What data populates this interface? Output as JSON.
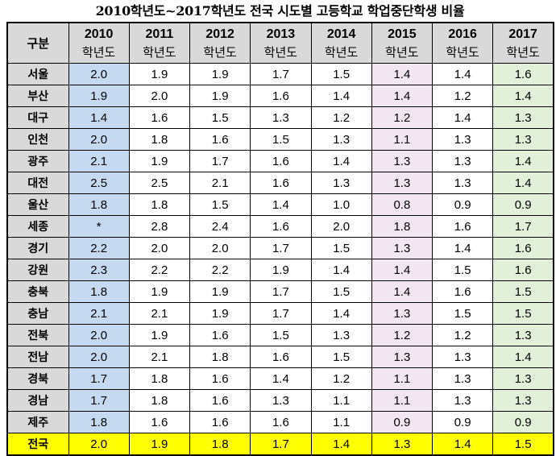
{
  "title": "2010학년도~2017학년도 전국 시도별 고등학교 학업중단학생 비율",
  "header": {
    "region_label": "구분",
    "unit": "학년도",
    "years": [
      "2010",
      "2011",
      "2012",
      "2013",
      "2014",
      "2015",
      "2016",
      "2017"
    ]
  },
  "rows": [
    {
      "region": "서울",
      "values": [
        "2.0",
        "1.9",
        "1.9",
        "1.7",
        "1.5",
        "1.4",
        "1.4",
        "1.6"
      ]
    },
    {
      "region": "부산",
      "values": [
        "1.9",
        "2.0",
        "1.9",
        "1.6",
        "1.4",
        "1.4",
        "1.2",
        "1.4"
      ]
    },
    {
      "region": "대구",
      "values": [
        "1.4",
        "1.6",
        "1.5",
        "1.3",
        "1.2",
        "1.2",
        "1.4",
        "1.3"
      ]
    },
    {
      "region": "인천",
      "values": [
        "2.0",
        "1.8",
        "1.6",
        "1.5",
        "1.3",
        "1.1",
        "1.3",
        "1.3"
      ]
    },
    {
      "region": "광주",
      "values": [
        "2.1",
        "1.9",
        "1.7",
        "1.6",
        "1.4",
        "1.3",
        "1.3",
        "1.4"
      ]
    },
    {
      "region": "대전",
      "values": [
        "2.5",
        "2.5",
        "2.1",
        "1.6",
        "1.3",
        "1.3",
        "1.3",
        "1.4"
      ]
    },
    {
      "region": "울산",
      "values": [
        "1.8",
        "1.8",
        "1.5",
        "1.4",
        "1.0",
        "0.8",
        "0.9",
        "0.9"
      ]
    },
    {
      "region": "세종",
      "values": [
        "*",
        "2.8",
        "2.4",
        "1.6",
        "2.0",
        "1.8",
        "1.6",
        "1.7"
      ]
    },
    {
      "region": "경기",
      "values": [
        "2.2",
        "2.0",
        "2.0",
        "1.7",
        "1.5",
        "1.3",
        "1.4",
        "1.6"
      ]
    },
    {
      "region": "강원",
      "values": [
        "2.3",
        "2.2",
        "2.2",
        "1.9",
        "1.4",
        "1.4",
        "1.5",
        "1.6"
      ]
    },
    {
      "region": "충북",
      "values": [
        "1.8",
        "1.9",
        "1.9",
        "1.7",
        "1.5",
        "1.4",
        "1.6",
        "1.5"
      ]
    },
    {
      "region": "충남",
      "values": [
        "2.1",
        "2.1",
        "1.9",
        "1.7",
        "1.4",
        "1.3",
        "1.5",
        "1.5"
      ]
    },
    {
      "region": "전북",
      "values": [
        "2.0",
        "1.9",
        "1.6",
        "1.5",
        "1.3",
        "1.2",
        "1.2",
        "1.3"
      ]
    },
    {
      "region": "전남",
      "values": [
        "2.0",
        "2.1",
        "1.8",
        "1.6",
        "1.5",
        "1.3",
        "1.3",
        "1.4"
      ]
    },
    {
      "region": "경북",
      "values": [
        "1.7",
        "1.8",
        "1.6",
        "1.4",
        "1.2",
        "1.1",
        "1.3",
        "1.3"
      ]
    },
    {
      "region": "경남",
      "values": [
        "1.7",
        "1.8",
        "1.6",
        "1.3",
        "1.1",
        "1.1",
        "1.3",
        "1.3"
      ]
    },
    {
      "region": "제주",
      "values": [
        "1.8",
        "1.6",
        "1.6",
        "1.6",
        "1.1",
        "0.9",
        "0.9",
        "0.9"
      ]
    }
  ],
  "total": {
    "region": "전국",
    "values": [
      "2.0",
      "1.9",
      "1.8",
      "1.7",
      "1.4",
      "1.3",
      "1.4",
      "1.5"
    ]
  },
  "colors": {
    "header_bg": "#d9d9d9",
    "col_2010_bg": "#c5d9f1",
    "col_2015_bg": "#f2e6f3",
    "col_2017_bg": "#e2efd9",
    "total_row_bg": "#ffff00"
  }
}
